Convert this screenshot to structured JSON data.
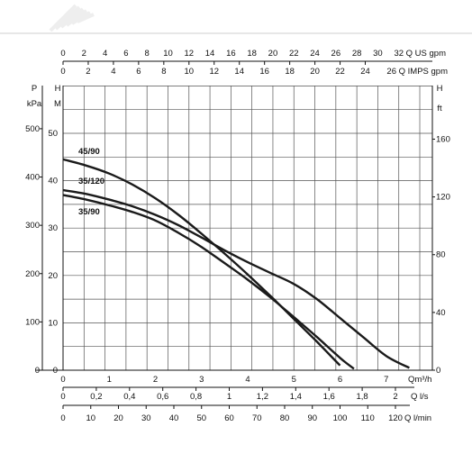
{
  "chart_data": {
    "type": "line",
    "title": "",
    "x": [
      0,
      0.5,
      1,
      1.5,
      2,
      2.5,
      3,
      3.5,
      4,
      4.5,
      5,
      5.5,
      6,
      6.5,
      7,
      7.5
    ],
    "xlim": [
      0,
      8
    ],
    "ylim": [
      0,
      50
    ],
    "grid": true,
    "series": [
      {
        "name": "45/90",
        "points": [
          [
            0,
            44.5
          ],
          [
            0.5,
            43.2
          ],
          [
            1,
            41.5
          ],
          [
            1.5,
            39.2
          ],
          [
            2,
            36.3
          ],
          [
            2.5,
            32.8
          ],
          [
            3,
            28.8
          ],
          [
            3.5,
            24.6
          ],
          [
            4,
            20.2
          ],
          [
            4.5,
            15.6
          ],
          [
            5,
            10.8
          ],
          [
            5.5,
            6.0
          ],
          [
            6,
            1.0
          ]
        ]
      },
      {
        "name": "35/120",
        "points": [
          [
            0,
            38.0
          ],
          [
            0.5,
            37.2
          ],
          [
            1,
            36.0
          ],
          [
            1.5,
            34.6
          ],
          [
            2,
            32.8
          ],
          [
            2.5,
            30.6
          ],
          [
            3,
            28.0
          ],
          [
            3.5,
            25.3
          ],
          [
            4,
            22.8
          ],
          [
            4.5,
            20.5
          ],
          [
            5,
            18.2
          ],
          [
            5.5,
            15.0
          ],
          [
            6,
            11.0
          ],
          [
            6.5,
            7.0
          ],
          [
            7,
            3.0
          ],
          [
            7.5,
            0.5
          ]
        ]
      },
      {
        "name": "35/90",
        "points": [
          [
            0,
            37.0
          ],
          [
            0.5,
            36.0
          ],
          [
            1,
            34.8
          ],
          [
            1.5,
            33.4
          ],
          [
            2,
            31.6
          ],
          [
            2.5,
            29.0
          ],
          [
            3,
            26.0
          ],
          [
            3.5,
            22.6
          ],
          [
            4,
            19.1
          ],
          [
            4.5,
            15.3
          ],
          [
            5,
            11.2
          ],
          [
            5.5,
            7.0
          ],
          [
            6,
            2.6
          ],
          [
            6.3,
            0.3
          ]
        ]
      }
    ],
    "axes": {
      "head_m": {
        "label": [
          "H",
          "M"
        ],
        "ticks": [
          0,
          10,
          20,
          30,
          40,
          50
        ]
      },
      "pressure_kpa": {
        "label": [
          "P",
          "kPa"
        ],
        "ticks": [
          0,
          100,
          200,
          300,
          400,
          500
        ]
      },
      "head_ft": {
        "label": [
          "H",
          "ft"
        ],
        "ticks": [
          0,
          40,
          80,
          120,
          160
        ]
      },
      "flow_m3h": {
        "unit": "Qm³/h",
        "ticks": [
          0,
          1,
          2,
          3,
          4,
          5,
          6,
          7
        ]
      },
      "flow_ls": {
        "unit": "Q l/s",
        "ticks": [
          "0",
          "0,2",
          "0,4",
          "0,6",
          "0,8",
          "1",
          "1,2",
          "1,4",
          "1,6",
          "1,8",
          "2"
        ]
      },
      "flow_lmin": {
        "unit": "Q l/min",
        "ticks": [
          0,
          10,
          20,
          30,
          40,
          50,
          60,
          70,
          80,
          90,
          100,
          110,
          120
        ]
      },
      "flow_usgpm": {
        "unit": "Q US gpm",
        "ticks": [
          0,
          2,
          4,
          6,
          8,
          10,
          12,
          14,
          16,
          18,
          20,
          22,
          24,
          26,
          28,
          30,
          32
        ]
      },
      "flow_impsgpm": {
        "unit": "Q IMPS gpm",
        "ticks": [
          0,
          2,
          4,
          6,
          8,
          10,
          12,
          14,
          16,
          18,
          20,
          22,
          24,
          26
        ]
      }
    }
  }
}
